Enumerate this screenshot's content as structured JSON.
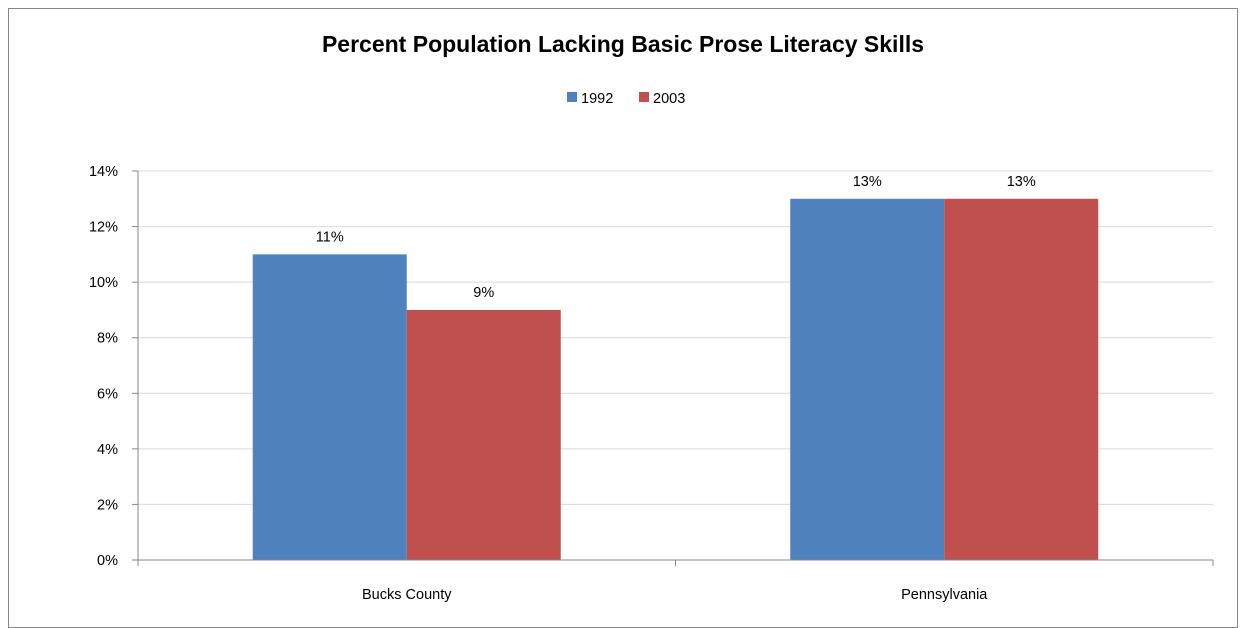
{
  "chart_data": {
    "type": "bar",
    "title": "Percent Population Lacking Basic Prose Literacy Skills",
    "categories": [
      "Bucks County",
      "Pennsylvania"
    ],
    "series": [
      {
        "name": "1992",
        "values": [
          11,
          13
        ],
        "color": "#4F81BD",
        "labels": [
          "11%",
          "13%"
        ]
      },
      {
        "name": "2003",
        "values": [
          9,
          13
        ],
        "color": "#C0504D",
        "labels": [
          "9%",
          "13%"
        ]
      }
    ],
    "ylim": [
      0,
      14
    ],
    "yticks": [
      0,
      2,
      4,
      6,
      8,
      10,
      12,
      14
    ],
    "ytick_labels": [
      "0%",
      "2%",
      "4%",
      "6%",
      "8%",
      "10%",
      "12%",
      "14%"
    ],
    "legend_position": "top",
    "grid": true,
    "gridline_color": "#D9D9D9",
    "axis_color": "#878787"
  }
}
